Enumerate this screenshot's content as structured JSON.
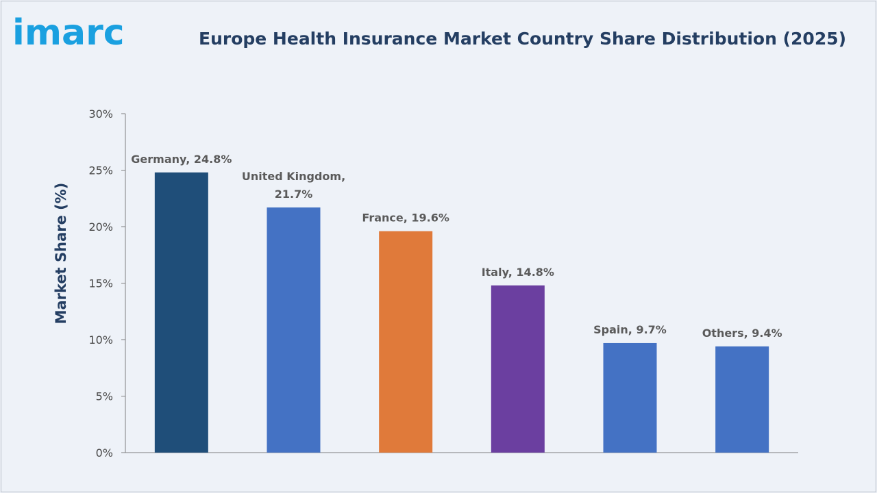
{
  "brand": {
    "logo_text": "imarc"
  },
  "header": {
    "title": "Europe Health Insurance Market Country Share Distribution (2025)"
  },
  "chart_data": {
    "type": "bar",
    "title": "Europe Health Insurance Market Country Share Distribution (2025)",
    "xlabel": "",
    "ylabel": "Market Share (%)",
    "ylim": [
      0,
      30
    ],
    "yticks": [
      "0%",
      "5%",
      "10%",
      "15%",
      "20%",
      "25%",
      "30%"
    ],
    "categories": [
      "Germany",
      "United Kingdom",
      "France",
      "Italy",
      "Spain",
      "Others"
    ],
    "values": [
      24.8,
      21.7,
      19.6,
      14.8,
      9.7,
      9.4
    ],
    "data_labels": [
      [
        "Germany, 24.8%"
      ],
      [
        "United Kingdom,",
        "21.7%"
      ],
      [
        "France, 19.6%"
      ],
      [
        "Italy, 14.8%"
      ],
      [
        "Spain, 9.7%"
      ],
      [
        "Others, 9.4%"
      ]
    ],
    "colors": [
      "#1f4e79",
      "#4472c4",
      "#e07a3a",
      "#6b3fa0",
      "#4472c4",
      "#4472c4"
    ],
    "grid": false,
    "legend": "none"
  }
}
